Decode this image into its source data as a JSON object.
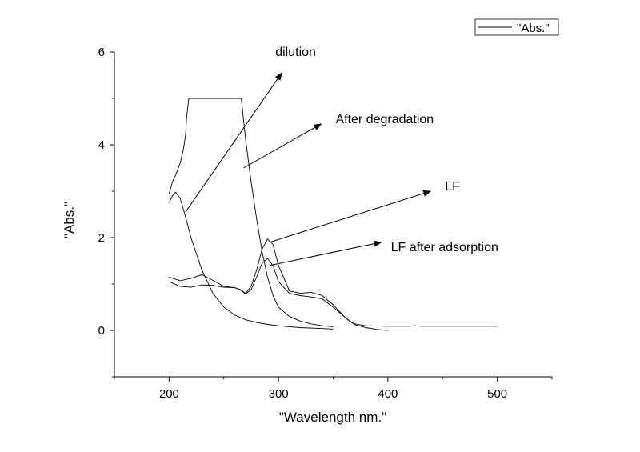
{
  "chart_data": {
    "type": "line",
    "xlabel": "\"Wavelength nm.\"",
    "ylabel": "\"Abs.\"",
    "xlim": [
      150,
      550
    ],
    "ylim": [
      -1,
      6
    ],
    "xticks": [
      200,
      300,
      400,
      500
    ],
    "yticks": [
      0,
      2,
      4,
      6
    ],
    "grid": false,
    "legend": {
      "placement": "top-right",
      "entries": [
        "\"Abs.\""
      ]
    },
    "series": [
      {
        "x": [
          200,
          203,
          206,
          210,
          213,
          215,
          216,
          218,
          220,
          230,
          240,
          250,
          260,
          266,
          270,
          275,
          280,
          285,
          290,
          295,
          300,
          310,
          320,
          330,
          340,
          350
        ],
        "y": [
          2.95,
          3.2,
          3.35,
          3.6,
          3.9,
          4.2,
          4.6,
          5.0,
          5.0,
          5.0,
          5.0,
          5.0,
          5.0,
          5.0,
          4.1,
          3.2,
          2.4,
          1.7,
          1.15,
          0.75,
          0.5,
          0.3,
          0.2,
          0.14,
          0.1,
          0.08
        ]
      },
      {
        "x": [
          200,
          203,
          206,
          210,
          215,
          220,
          230,
          240,
          250,
          260,
          270,
          280,
          290,
          300,
          310,
          320,
          330,
          340,
          350
        ],
        "y": [
          2.75,
          2.9,
          2.98,
          2.85,
          2.45,
          2.0,
          1.3,
          0.8,
          0.5,
          0.33,
          0.23,
          0.17,
          0.13,
          0.1,
          0.08,
          0.06,
          0.05,
          0.04,
          0.03
        ]
      },
      {
        "x": [
          200,
          210,
          220,
          230,
          240,
          250,
          260,
          265,
          270,
          275,
          280,
          285,
          290,
          295,
          300,
          310,
          320,
          330,
          340,
          350,
          360,
          365,
          370,
          380,
          400,
          420,
          425,
          430,
          450,
          470,
          500
        ],
        "y": [
          1.15,
          1.07,
          1.12,
          1.2,
          1.08,
          0.95,
          0.92,
          0.88,
          0.8,
          0.95,
          1.3,
          1.75,
          1.97,
          1.85,
          1.4,
          0.85,
          0.8,
          0.82,
          0.75,
          0.55,
          0.3,
          0.2,
          0.14,
          0.1,
          0.09,
          0.09,
          0.1,
          0.09,
          0.09,
          0.09,
          0.09
        ]
      },
      {
        "x": [
          200,
          210,
          220,
          230,
          240,
          250,
          260,
          265,
          270,
          275,
          280,
          285,
          290,
          295,
          300,
          310,
          320,
          330,
          340,
          350,
          360,
          365,
          370,
          380,
          390,
          400
        ],
        "y": [
          1.05,
          0.95,
          0.93,
          0.98,
          0.97,
          0.93,
          0.92,
          0.88,
          0.78,
          0.88,
          1.15,
          1.45,
          1.55,
          1.4,
          1.05,
          0.8,
          0.75,
          0.72,
          0.68,
          0.5,
          0.3,
          0.2,
          0.12,
          0.06,
          0.02,
          0.0
        ]
      }
    ],
    "annotations": [
      {
        "text": "dilution",
        "from": [
          215,
          2.55
        ],
        "to": [
          303,
          5.55
        ]
      },
      {
        "text": "After degradation",
        "from": [
          268,
          3.5
        ],
        "to": [
          339,
          4.45
        ]
      },
      {
        "text": "LF",
        "from": [
          292,
          1.9
        ],
        "to": [
          439,
          3.0
        ]
      },
      {
        "text": "LF after adsorption",
        "from": [
          292,
          1.4
        ],
        "to": [
          394,
          1.9
        ]
      }
    ]
  }
}
